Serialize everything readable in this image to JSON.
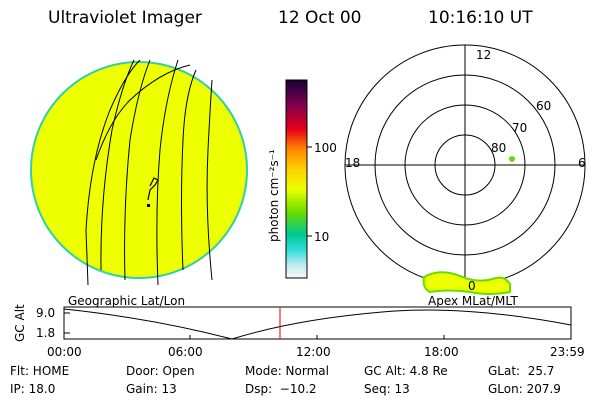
{
  "header": {
    "instrument": "Ultraviolet Imager",
    "date": "12 Oct 00",
    "time": "10:16:10 UT"
  },
  "globe": {
    "caption": "Geographic Lat/Lon",
    "fill_color": "#eeff00",
    "limb_color": "#2fd0a8"
  },
  "colorbar": {
    "unit_label": "photon cm⁻²s⁻¹",
    "ticks": [
      "100",
      "10"
    ]
  },
  "polar": {
    "caption": "Apex MLat/MLT",
    "lat_labels": [
      "60",
      "70",
      "80"
    ],
    "mlt_labels": [
      "12",
      "18",
      "6",
      "0"
    ]
  },
  "altitude_plot": {
    "ylabel": "GC Alt",
    "yticks": [
      "9.0",
      "1.8"
    ],
    "xticks": [
      "00:00",
      "06:00",
      "12:00",
      "18:00",
      "23:59"
    ],
    "marker_time": "10:16"
  },
  "status": {
    "flt": "Flt: HOME",
    "ip": "IP: 18.0",
    "door": "Door: Open",
    "gain": "Gain: 13",
    "mode": "Mode: Normal",
    "dsp": "Dsp:  −10.2",
    "gcalt": "GC Alt: 4.8 Re",
    "seq": "Seq: 13",
    "glat": "GLat:  25.7",
    "glon": "GLon: 207.9"
  }
}
